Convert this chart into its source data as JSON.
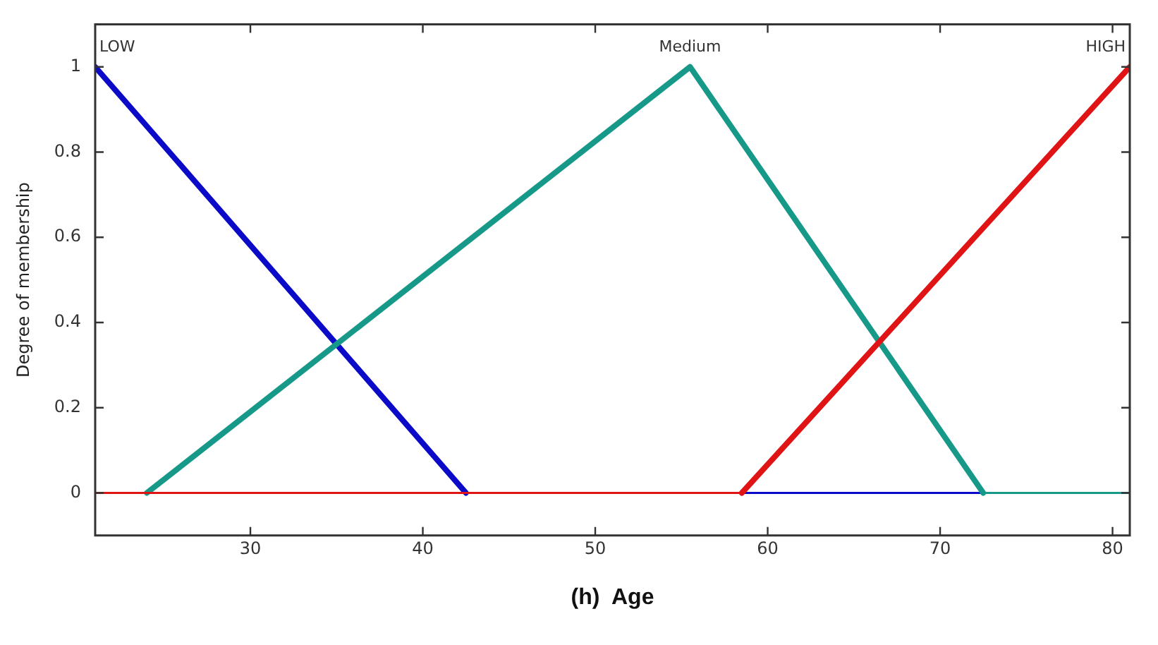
{
  "chart_data": {
    "type": "line",
    "xlabel": "(h)  Age",
    "ylabel": "Degree of membership",
    "xlim": [
      21,
      81
    ],
    "xticks": [
      30,
      40,
      50,
      60,
      70,
      80
    ],
    "ylim": [
      -0.1,
      1.1
    ],
    "yticks": [
      0,
      0.2,
      0.4,
      0.6,
      0.8,
      1
    ],
    "grid": false,
    "legend": false,
    "marker": "none",
    "line_style": "solid",
    "series": [
      {
        "name": "LOW",
        "color": "#0a0ac8",
        "x": [
          21,
          42.5,
          81
        ],
        "values": [
          1,
          0,
          0
        ]
      },
      {
        "name": "Medium",
        "color": "#17998a",
        "x": [
          21,
          24,
          55.5,
          72.5,
          81
        ],
        "values": [
          0,
          0,
          1,
          0,
          0
        ]
      },
      {
        "name": "HIGH",
        "color": "#e01414",
        "x": [
          21,
          58.5,
          81
        ],
        "values": [
          0,
          0,
          1
        ]
      }
    ]
  }
}
